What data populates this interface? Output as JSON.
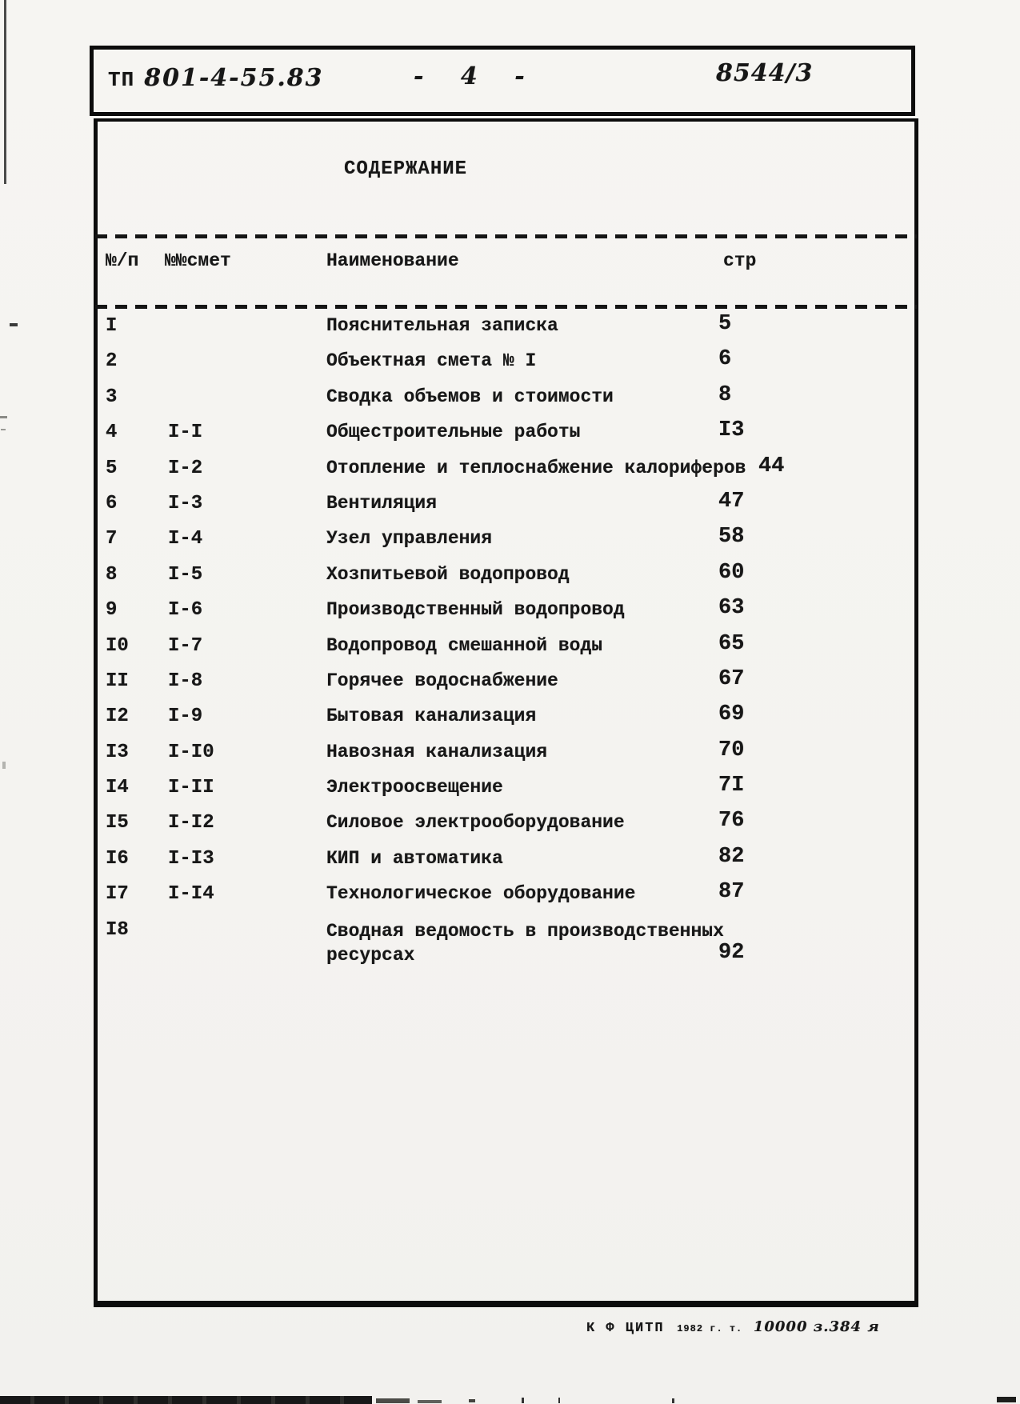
{
  "page_header": {
    "doc_code_prefix": "ТП",
    "doc_code": "801-4-55.83",
    "page_marker": "- 4 -",
    "archive_number": "8544/3"
  },
  "content": {
    "title": "СОДЕРЖАНИЕ",
    "columns": {
      "num": "№/п",
      "smeta": "№№смет",
      "name": "Наименование",
      "page": "стр"
    },
    "rows": [
      {
        "num": "I",
        "smeta": "",
        "name": "Пояснительная записка",
        "page": "5"
      },
      {
        "num": "2",
        "smeta": "",
        "name": "Объектная смета № I",
        "page": "6"
      },
      {
        "num": "3",
        "smeta": "",
        "name": "Сводка объемов и стоимости",
        "page": "8"
      },
      {
        "num": "4",
        "smeta": "I-I",
        "name": "Общестроительные работы",
        "page": "I3"
      },
      {
        "num": "5",
        "smeta": "I-2",
        "name": "Отопление и теплоснабжение калориферов",
        "page": "44"
      },
      {
        "num": "6",
        "smeta": "I-3",
        "name": "Вентиляция",
        "page": "47"
      },
      {
        "num": "7",
        "smeta": "I-4",
        "name": "Узел управления",
        "page": "58"
      },
      {
        "num": "8",
        "smeta": "I-5",
        "name": "Хозпитьевой водопровод",
        "page": "60"
      },
      {
        "num": "9",
        "smeta": "I-6",
        "name": "Производственный водопровод",
        "page": "63"
      },
      {
        "num": "I0",
        "smeta": "I-7",
        "name": "Водопровод смешанной воды",
        "page": "65"
      },
      {
        "num": "II",
        "smeta": "I-8",
        "name": "Горячее водоснабжение",
        "page": "67"
      },
      {
        "num": "I2",
        "smeta": "I-9",
        "name": "Бытовая канализация",
        "page": "69"
      },
      {
        "num": "I3",
        "smeta": "I-I0",
        "name": "Навозная канализация",
        "page": "70"
      },
      {
        "num": "I4",
        "smeta": "I-II",
        "name": "Электроосвещение",
        "page": "7I"
      },
      {
        "num": "I5",
        "smeta": "I-I2",
        "name": "Силовое электрооборудование",
        "page": "76"
      },
      {
        "num": "I6",
        "smeta": "I-I3",
        "name": "КИП  и  автоматика",
        "page": "82"
      },
      {
        "num": "I7",
        "smeta": "I-I4",
        "name": "Технологическое оборудование",
        "page": "87"
      },
      {
        "num": "I8",
        "smeta": "",
        "name": "Сводная ведомость в производственных ресурсах",
        "page": "92"
      }
    ]
  },
  "print_footer": {
    "org": "К Ф ЦИТП",
    "year_info": "1982 г. т.",
    "print_info": "10000  з.384 я"
  },
  "colors": {
    "ink": "#171717",
    "paper": "#f5f4f1",
    "border": "#0c0c0c"
  }
}
